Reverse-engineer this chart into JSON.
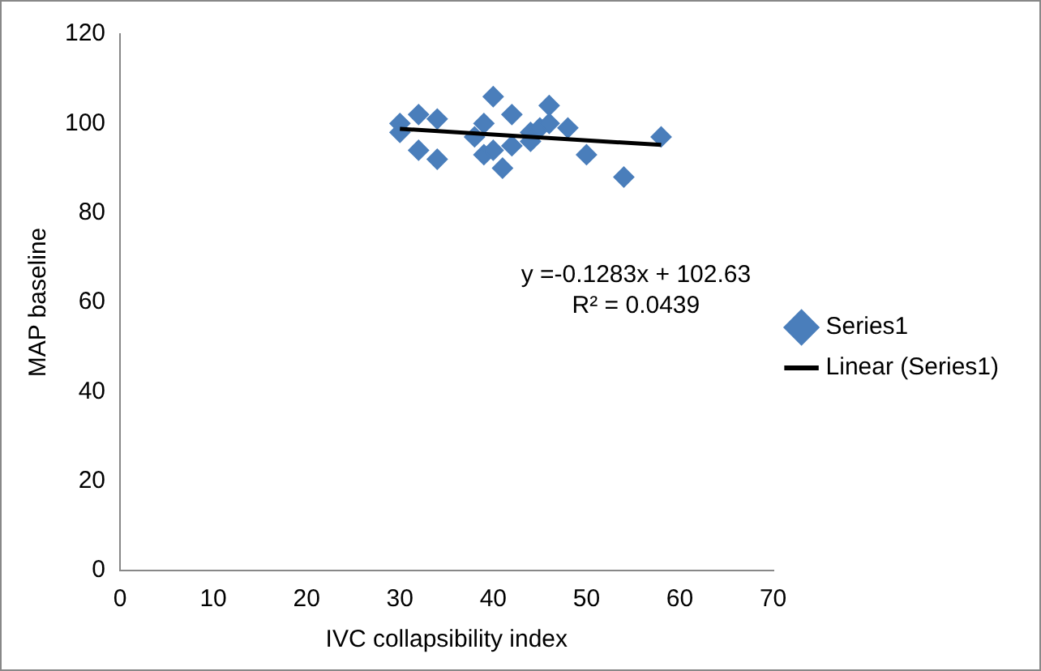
{
  "chart_data": {
    "type": "scatter",
    "xlabel": "IVC collapsibility index",
    "ylabel": "MAP baseline",
    "xlim": [
      0,
      70
    ],
    "xticks": [
      0,
      10,
      20,
      30,
      40,
      50,
      60,
      70
    ],
    "ylim": [
      0,
      120
    ],
    "yticks": [
      0,
      20,
      40,
      60,
      80,
      100,
      120
    ],
    "grid": false,
    "legend": "right",
    "annotations": [
      "y =-0.1283x + 102.63",
      "R² = 0.0439"
    ],
    "series": [
      {
        "name": "Series1",
        "color": "#4a7ebb",
        "marker": "diamond",
        "x": [
          30,
          30,
          32,
          34,
          32,
          34,
          40,
          42,
          46,
          48,
          50,
          54,
          58,
          41,
          39,
          38,
          42,
          44,
          45,
          46,
          40,
          44,
          39
        ],
        "values": [
          100,
          98,
          102,
          101,
          94,
          92,
          106,
          102,
          104,
          99,
          93,
          88,
          97,
          90,
          93,
          97,
          95,
          98,
          99,
          100,
          94,
          96,
          100
        ]
      },
      {
        "name": "Linear (Series1)",
        "type": "line",
        "color": "#000000",
        "marker": "none",
        "x": [
          30,
          58
        ],
        "values": [
          98.8,
          95.2
        ]
      }
    ]
  }
}
